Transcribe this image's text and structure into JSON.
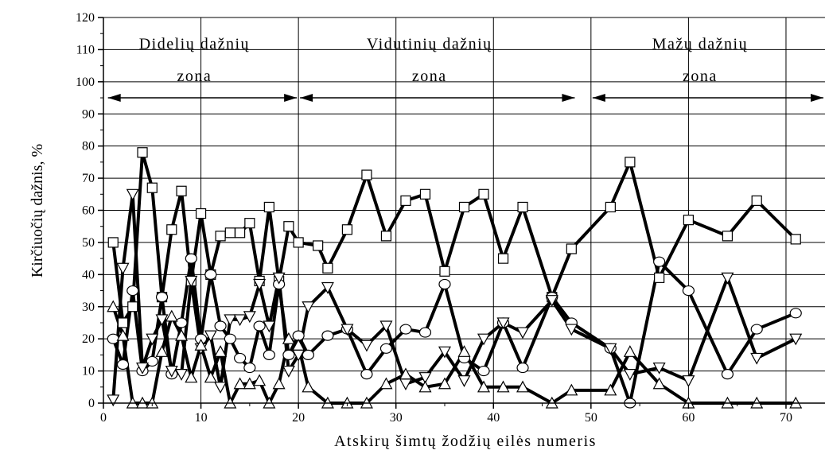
{
  "chart_data": {
    "type": "line",
    "title": "",
    "xlabel": "Atskirų šimtų žodžių eilės numeris",
    "ylabel": "Kirčiuočių dažnis, %",
    "xlim": [
      0,
      74
    ],
    "ylim": [
      0,
      120
    ],
    "x_ticks": [
      0,
      10,
      20,
      30,
      40,
      50,
      60,
      70
    ],
    "y_ticks": [
      0,
      10,
      20,
      30,
      40,
      50,
      60,
      70,
      80,
      90,
      100,
      110,
      120
    ],
    "grid": true,
    "grid_x": [
      10,
      20,
      30,
      40,
      50,
      60,
      70
    ],
    "grid_y": [
      10,
      20,
      30,
      40,
      50,
      60,
      70,
      80,
      90,
      100,
      110,
      120
    ],
    "legend": "none",
    "zones": [
      {
        "line1": "Didelių dažnių",
        "line2": "zona",
        "x_start": 0.3,
        "x_end": 20,
        "arrow_y": 95
      },
      {
        "line1": "Vidutinių dažnių",
        "line2": "zona",
        "x_start": 20,
        "x_end": 48.5,
        "arrow_y": 95
      },
      {
        "line1": "Mažų dažnių",
        "line2": "zona",
        "x_start": 50,
        "x_end": 74,
        "arrow_y": 95
      }
    ],
    "series": [
      {
        "marker": "square",
        "x": [
          1,
          2,
          3,
          4,
          5,
          6,
          7,
          8,
          9,
          10,
          11,
          12,
          13,
          14,
          15,
          16,
          17,
          18,
          19,
          20,
          22,
          23,
          25,
          27,
          29,
          31,
          33,
          35,
          37,
          39,
          41,
          43,
          46,
          48,
          52,
          54,
          57,
          60,
          64,
          67,
          71
        ],
        "y": [
          50,
          25,
          30,
          78,
          67,
          33,
          54,
          66,
          38,
          59,
          40,
          52,
          53,
          53,
          56,
          38,
          61,
          38,
          55,
          50,
          49,
          42,
          54,
          71,
          52,
          63,
          65,
          41,
          61,
          65,
          45,
          61,
          33,
          48,
          61,
          75,
          39,
          57,
          52,
          63,
          51
        ]
      },
      {
        "marker": "circle",
        "x": [
          1,
          2,
          3,
          4,
          5,
          6,
          7,
          8,
          9,
          10,
          11,
          12,
          13,
          14,
          15,
          16,
          17,
          18,
          19,
          20,
          21,
          23,
          25,
          27,
          29,
          31,
          33,
          35,
          37,
          39,
          41,
          43,
          46,
          48,
          52,
          54,
          57,
          60,
          64,
          67,
          71
        ],
        "y": [
          20,
          12,
          35,
          10,
          13,
          33,
          9,
          25,
          45,
          20,
          40,
          24,
          20,
          14,
          11,
          24,
          15,
          37,
          15,
          21,
          15,
          21,
          23,
          9,
          17,
          23,
          22,
          37,
          14,
          10,
          25,
          11,
          33,
          25,
          17,
          0,
          44,
          35,
          9,
          23,
          28
        ]
      },
      {
        "marker": "triangle-down",
        "x": [
          1,
          2,
          3,
          4,
          5,
          6,
          7,
          8,
          9,
          10,
          11,
          12,
          13,
          14,
          15,
          16,
          17,
          18,
          19,
          20,
          21,
          23,
          25,
          27,
          29,
          31,
          33,
          35,
          37,
          39,
          41,
          43,
          46,
          48,
          52,
          54,
          57,
          60,
          64,
          67,
          71
        ],
        "y": [
          1,
          42,
          65,
          11,
          20,
          26,
          10,
          9,
          38,
          17,
          21,
          5,
          26,
          26,
          27,
          37,
          24,
          39,
          10,
          15,
          30,
          36,
          23,
          18,
          24,
          6,
          8,
          16,
          7,
          20,
          25,
          22,
          32,
          23,
          17,
          9,
          11,
          7,
          39,
          14,
          20
        ]
      },
      {
        "marker": "triangle-up",
        "x": [
          1,
          2,
          3,
          4,
          5,
          6,
          7,
          8,
          9,
          10,
          11,
          12,
          13,
          14,
          15,
          16,
          17,
          18,
          19,
          20,
          21,
          23,
          25,
          27,
          29,
          31,
          33,
          35,
          37,
          39,
          41,
          43,
          46,
          48,
          52,
          54,
          57,
          60,
          64,
          67,
          71
        ],
        "y": [
          30,
          21,
          0,
          0,
          0,
          16,
          27,
          21,
          8,
          18,
          8,
          16,
          0,
          6,
          6,
          7,
          0,
          6,
          20,
          18,
          5,
          0,
          0,
          0,
          6,
          9,
          5,
          6,
          16,
          5,
          5,
          5,
          0,
          4,
          4,
          16,
          6,
          0,
          0,
          0,
          0
        ]
      }
    ]
  }
}
